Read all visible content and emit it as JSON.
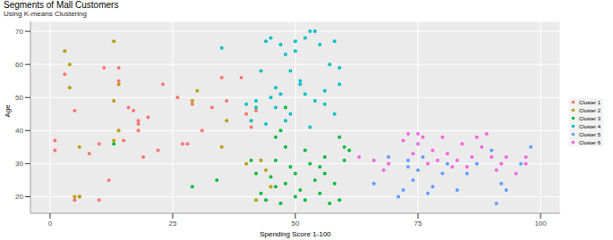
{
  "chart_data": {
    "type": "scatter",
    "title": "Segments of Mall Customers",
    "subtitle": "Using K-means Clustering",
    "x_label": "Spending Score 1-100",
    "y_label": "Age",
    "xlim": [
      -4,
      104
    ],
    "ylim": [
      15,
      73
    ],
    "xticks": [
      0,
      25,
      50,
      75,
      100
    ],
    "yticks": [
      20,
      30,
      40,
      50,
      60,
      70
    ],
    "grid": true,
    "legend": "right",
    "marker": "circle",
    "series": [
      {
        "name": "Cluster 1",
        "color": "#F8766D",
        "values": [
          [
            1,
            37
          ],
          [
            1,
            34
          ],
          [
            3,
            57
          ],
          [
            5,
            19
          ],
          [
            6,
            20
          ],
          [
            8,
            33
          ],
          [
            10,
            36
          ],
          [
            10,
            19
          ],
          [
            11,
            59
          ],
          [
            12,
            25
          ],
          [
            14,
            59
          ],
          [
            14,
            55
          ],
          [
            15,
            37
          ],
          [
            16,
            47
          ],
          [
            17,
            46
          ],
          [
            18,
            42
          ],
          [
            18,
            43
          ],
          [
            18,
            40
          ],
          [
            19,
            32
          ],
          [
            20,
            44
          ],
          [
            22,
            34
          ],
          [
            23,
            54
          ],
          [
            26,
            50
          ],
          [
            27,
            36
          ],
          [
            28,
            36
          ],
          [
            29,
            48
          ],
          [
            31,
            40
          ],
          [
            33,
            47
          ],
          [
            35,
            56
          ],
          [
            36,
            49
          ],
          [
            39,
            56
          ],
          [
            40,
            45
          ],
          [
            41,
            41
          ],
          [
            42,
            46
          ],
          [
            5,
            46
          ]
        ]
      },
      {
        "name": "Cluster 2",
        "color": "#B79F00",
        "values": [
          [
            3,
            64
          ],
          [
            4,
            60
          ],
          [
            4,
            53
          ],
          [
            5,
            20
          ],
          [
            6,
            20
          ],
          [
            13,
            67
          ],
          [
            13,
            49
          ],
          [
            14,
            54
          ],
          [
            14,
            40
          ],
          [
            13,
            37
          ],
          [
            6,
            35
          ],
          [
            30,
            52
          ],
          [
            29,
            49
          ],
          [
            35,
            35
          ],
          [
            36,
            43
          ],
          [
            40,
            30
          ],
          [
            42,
            19
          ],
          [
            43,
            31
          ],
          [
            44,
            28
          ],
          [
            45,
            23
          ]
        ]
      },
      {
        "name": "Cluster 3",
        "color": "#00BA38",
        "values": [
          [
            13,
            36
          ],
          [
            29,
            23
          ],
          [
            34,
            25
          ],
          [
            41,
            31
          ],
          [
            42,
            27
          ],
          [
            43,
            21
          ],
          [
            44,
            19
          ],
          [
            45,
            26
          ],
          [
            46,
            23
          ],
          [
            46,
            31
          ],
          [
            47,
            18
          ],
          [
            48,
            24
          ],
          [
            48,
            35
          ],
          [
            49,
            29
          ],
          [
            50,
            20
          ],
          [
            50,
            27
          ],
          [
            51,
            22
          ],
          [
            52,
            34
          ],
          [
            52,
            19
          ],
          [
            53,
            30
          ],
          [
            54,
            25
          ],
          [
            55,
            21
          ],
          [
            55,
            29
          ],
          [
            56,
            32
          ],
          [
            56,
            27
          ],
          [
            57,
            18
          ],
          [
            58,
            24
          ],
          [
            59,
            19
          ],
          [
            59,
            38
          ],
          [
            60,
            35
          ],
          [
            60,
            31
          ],
          [
            61,
            34
          ],
          [
            48,
            47
          ],
          [
            47,
            40
          ],
          [
            46,
            38
          ]
        ]
      },
      {
        "name": "Cluster 4",
        "color": "#00BFC4",
        "values": [
          [
            35,
            65
          ],
          [
            40,
            48
          ],
          [
            41,
            43
          ],
          [
            42,
            49
          ],
          [
            42,
            47
          ],
          [
            43,
            58
          ],
          [
            44,
            67
          ],
          [
            45,
            68
          ],
          [
            45,
            50
          ],
          [
            46,
            47
          ],
          [
            46,
            53
          ],
          [
            47,
            66
          ],
          [
            48,
            63
          ],
          [
            48,
            43
          ],
          [
            49,
            58
          ],
          [
            50,
            64
          ],
          [
            50,
            67
          ],
          [
            51,
            54
          ],
          [
            51,
            55
          ],
          [
            52,
            68
          ],
          [
            52,
            51
          ],
          [
            53,
            70
          ],
          [
            54,
            70
          ],
          [
            54,
            49
          ],
          [
            55,
            66
          ],
          [
            56,
            52
          ],
          [
            56,
            48
          ],
          [
            57,
            60
          ],
          [
            58,
            45
          ],
          [
            59,
            54
          ],
          [
            59,
            59
          ],
          [
            58,
            67
          ],
          [
            49,
            45
          ],
          [
            53,
            41
          ],
          [
            44,
            42
          ],
          [
            47,
            51
          ]
        ]
      },
      {
        "name": "Cluster 5",
        "color": "#619CFF",
        "values": [
          [
            66,
            24
          ],
          [
            69,
            32
          ],
          [
            71,
            20
          ],
          [
            72,
            22
          ],
          [
            73,
            29
          ],
          [
            74,
            25
          ],
          [
            76,
            32
          ],
          [
            77,
            21
          ],
          [
            78,
            23
          ],
          [
            80,
            27
          ],
          [
            81,
            30
          ],
          [
            83,
            22
          ],
          [
            85,
            27
          ],
          [
            87,
            30
          ],
          [
            90,
            34
          ],
          [
            91,
            18
          ],
          [
            92,
            24
          ],
          [
            93,
            22
          ],
          [
            96,
            30
          ],
          [
            98,
            35
          ],
          [
            73,
            31
          ],
          [
            75,
            28
          ]
        ]
      },
      {
        "name": "Cluster 6",
        "color": "#F564E3",
        "values": [
          [
            63,
            32
          ],
          [
            66,
            31
          ],
          [
            68,
            28
          ],
          [
            69,
            30
          ],
          [
            72,
            37
          ],
          [
            73,
            39
          ],
          [
            74,
            33
          ],
          [
            75,
            36
          ],
          [
            75,
            39
          ],
          [
            76,
            38
          ],
          [
            77,
            30
          ],
          [
            78,
            34
          ],
          [
            79,
            31
          ],
          [
            81,
            33
          ],
          [
            82,
            29
          ],
          [
            83,
            31
          ],
          [
            85,
            29
          ],
          [
            86,
            32
          ],
          [
            87,
            38
          ],
          [
            88,
            35
          ],
          [
            89,
            39
          ],
          [
            90,
            32
          ],
          [
            91,
            28
          ],
          [
            92,
            30
          ],
          [
            93,
            32
          ],
          [
            95,
            27
          ],
          [
            97,
            30
          ],
          [
            97,
            32
          ],
          [
            80,
            38
          ],
          [
            84,
            36
          ]
        ]
      }
    ]
  }
}
